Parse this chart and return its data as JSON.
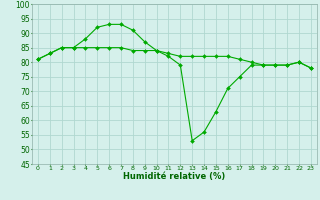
{
  "xlabel": "Humidité relative (%)",
  "background_color": "#d5f0eb",
  "grid_color": "#b0d8d0",
  "line_color": "#00aa00",
  "marker_color": "#00aa00",
  "ylim": [
    45,
    100
  ],
  "yticks": [
    45,
    50,
    55,
    60,
    65,
    70,
    75,
    80,
    85,
    90,
    95,
    100
  ],
  "xlim": [
    -0.5,
    23.5
  ],
  "xticks": [
    0,
    1,
    2,
    3,
    4,
    5,
    6,
    7,
    8,
    9,
    10,
    11,
    12,
    13,
    14,
    15,
    16,
    17,
    18,
    19,
    20,
    21,
    22,
    23
  ],
  "line1_x": [
    0,
    1,
    2,
    3,
    4,
    5,
    6,
    7,
    8,
    9,
    10,
    11,
    12,
    13,
    14,
    15,
    16,
    17,
    18,
    19,
    20,
    21,
    22,
    23
  ],
  "line1_y": [
    81,
    83,
    85,
    85,
    88,
    92,
    93,
    93,
    91,
    87,
    84,
    83,
    82,
    82,
    82,
    82,
    82,
    81,
    80,
    79,
    79,
    79,
    80,
    78
  ],
  "line2_x": [
    0,
    1,
    2,
    3,
    4,
    5,
    6,
    7,
    8,
    9,
    10,
    11,
    12,
    13,
    14,
    15,
    16,
    17,
    18,
    19,
    20,
    21,
    22,
    23
  ],
  "line2_y": [
    81,
    83,
    85,
    85,
    85,
    85,
    85,
    85,
    84,
    84,
    84,
    82,
    79,
    53,
    56,
    63,
    71,
    75,
    79,
    79,
    79,
    79,
    80,
    78
  ],
  "tick_color": "#006600",
  "xlabel_fontsize": 6.0,
  "ytick_fontsize": 5.5,
  "xtick_fontsize": 4.5
}
